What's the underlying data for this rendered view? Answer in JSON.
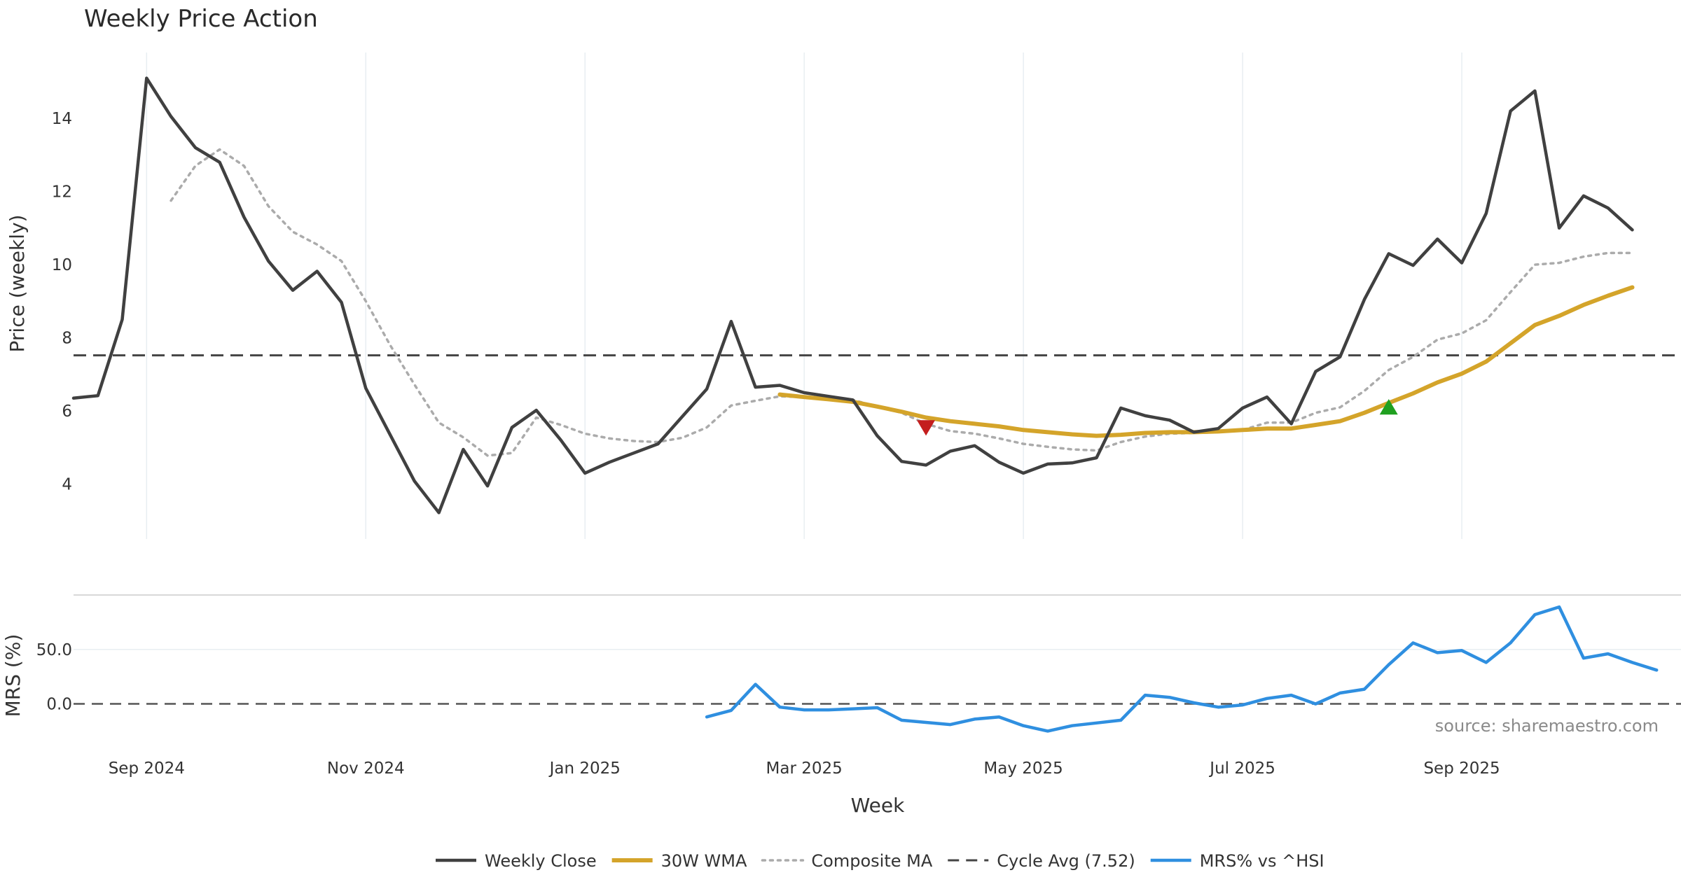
{
  "chart_data": {
    "type": "line",
    "title": "Weekly Price Action",
    "xlabel": "Week",
    "source": "source: sharemaestro.com",
    "x_ticks": [
      "Sep 2024",
      "Nov 2024",
      "Jan 2025",
      "Mar 2025",
      "May 2025",
      "Jul 2025",
      "Sep 2025"
    ],
    "x_tick_weeks": [
      3,
      12,
      21,
      30,
      39,
      48,
      57
    ],
    "week_range": [
      0,
      66
    ],
    "price_panel": {
      "ylabel": "Price (weekly)",
      "ylim": [
        2.5,
        15.8
      ],
      "y_ticks": [
        4,
        6,
        8,
        10,
        12,
        14
      ],
      "y_tick_labels": [
        "4",
        "6",
        "8",
        "10",
        "12",
        "14"
      ],
      "cycle_avg": 7.52,
      "series": [
        {
          "name": "Weekly Close",
          "color": "#404040",
          "style": "solid",
          "values": [
            6.35,
            6.42,
            8.5,
            15.1,
            14.05,
            13.2,
            12.8,
            11.3,
            10.1,
            9.3,
            9.82,
            8.97,
            6.62,
            5.35,
            4.08,
            3.22,
            4.95,
            3.95,
            5.55,
            6.02,
            5.21,
            4.3,
            4.6,
            4.85,
            5.1,
            5.85,
            6.6,
            8.45,
            6.65,
            6.7,
            6.5,
            6.4,
            6.3,
            5.32,
            4.62,
            4.52,
            4.9,
            5.05,
            4.6,
            4.3,
            4.55,
            4.58,
            4.72,
            6.08,
            5.87,
            5.75,
            5.42,
            5.52,
            6.08,
            6.38,
            5.65,
            7.08,
            7.48,
            9.05,
            10.3,
            9.98,
            10.7,
            10.05,
            11.4,
            14.2,
            14.75,
            11.0,
            11.88,
            11.55,
            10.95
          ]
        },
        {
          "name": "30W WMA",
          "color": "#d4a42a",
          "style": "solid",
          "values": [
            null,
            null,
            null,
            null,
            null,
            null,
            null,
            null,
            null,
            null,
            null,
            null,
            null,
            null,
            null,
            null,
            null,
            null,
            null,
            null,
            null,
            null,
            null,
            null,
            null,
            null,
            null,
            null,
            null,
            6.45,
            6.38,
            6.32,
            6.25,
            6.12,
            5.98,
            5.82,
            5.72,
            5.65,
            5.58,
            5.48,
            5.42,
            5.36,
            5.32,
            5.35,
            5.4,
            5.42,
            5.42,
            5.44,
            5.48,
            5.52,
            5.52,
            5.62,
            5.72,
            5.95,
            6.22,
            6.48,
            6.78,
            7.02,
            7.35,
            7.85,
            8.35,
            8.6,
            8.9,
            9.15,
            9.38
          ]
        },
        {
          "name": "Composite MA",
          "color": "#ababab",
          "style": "dotted",
          "values": [
            null,
            null,
            null,
            null,
            11.75,
            12.7,
            13.15,
            12.7,
            11.6,
            10.9,
            10.55,
            10.1,
            9.0,
            7.8,
            6.72,
            5.68,
            5.28,
            4.78,
            4.85,
            5.82,
            5.62,
            5.38,
            5.25,
            5.18,
            5.15,
            5.27,
            5.55,
            6.15,
            6.28,
            6.4,
            6.38,
            6.32,
            6.3,
            6.12,
            5.95,
            5.65,
            5.45,
            5.38,
            5.25,
            5.1,
            5.02,
            4.95,
            4.92,
            5.15,
            5.3,
            5.38,
            5.4,
            5.42,
            5.48,
            5.68,
            5.68,
            5.95,
            6.1,
            6.55,
            7.12,
            7.48,
            7.95,
            8.12,
            8.48,
            9.25,
            10.0,
            10.05,
            10.22,
            10.32,
            10.32
          ]
        }
      ],
      "markers": [
        {
          "label": "sell-signal",
          "week": 35,
          "value": 5.55,
          "shape": "triangle-down",
          "color": "#c41e1e"
        },
        {
          "label": "buy-signal",
          "week": 54,
          "value": 6.1,
          "shape": "triangle-up",
          "color": "#20a020"
        }
      ]
    },
    "mrs_panel": {
      "ylabel": "MRS (%)",
      "ylim": [
        -35,
        100
      ],
      "y_ticks": [
        0,
        50
      ],
      "y_tick_labels": [
        "0.0",
        "50.0"
      ],
      "series": [
        {
          "name": "MRS% vs ^HSI",
          "color": "#2f8fe0",
          "values": [
            null,
            null,
            null,
            null,
            null,
            null,
            null,
            null,
            null,
            null,
            null,
            null,
            null,
            null,
            null,
            null,
            null,
            null,
            null,
            null,
            null,
            null,
            null,
            null,
            null,
            null,
            -12,
            -6,
            18,
            -3,
            -5.5,
            -5.5,
            -4.5,
            -3.5,
            -15,
            -17,
            -19,
            -14,
            -12,
            -20,
            -25,
            -20,
            -17.5,
            -15,
            8,
            6,
            1,
            -3,
            -1,
            5,
            8,
            0,
            10,
            13.5,
            36,
            56,
            47,
            49,
            38,
            56,
            82,
            89,
            42,
            46,
            38,
            31
          ]
        }
      ]
    },
    "legend": [
      {
        "label": "Weekly Close",
        "color": "#404040",
        "style": "solid"
      },
      {
        "label": "30W WMA",
        "color": "#d4a42a",
        "style": "solid"
      },
      {
        "label": "Composite MA",
        "color": "#ababab",
        "style": "dotted"
      },
      {
        "label": "Cycle Avg (7.52)",
        "color": "#444444",
        "style": "dashed"
      },
      {
        "label": "MRS% vs ^HSI",
        "color": "#2f8fe0",
        "style": "solid"
      }
    ]
  }
}
